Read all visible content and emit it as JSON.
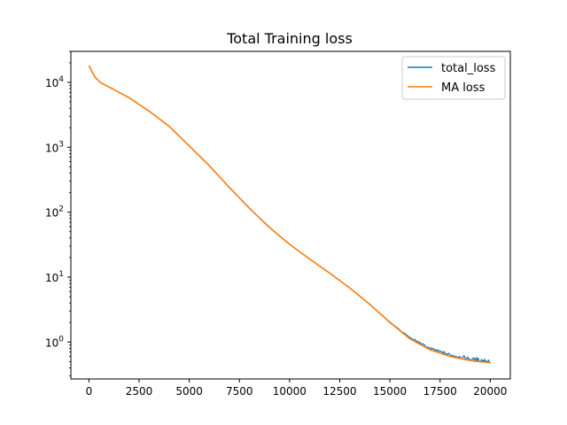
{
  "chart_data": {
    "type": "line",
    "title": "Total Training loss",
    "xlabel": "",
    "ylabel": "",
    "xlim": [
      -900,
      21000
    ],
    "ylim": [
      0.27,
      30000
    ],
    "yscale": "log",
    "x_ticks": [
      0,
      2500,
      5000,
      7500,
      10000,
      12500,
      15000,
      17500,
      20000
    ],
    "x_tick_labels": [
      "0",
      "2500",
      "5000",
      "7500",
      "10000",
      "12500",
      "15000",
      "17500",
      "20000"
    ],
    "y_ticks": [
      1,
      10,
      100,
      1000,
      10000
    ],
    "y_tick_labels": [
      {
        "base": "10",
        "exp": "0"
      },
      {
        "base": "10",
        "exp": "1"
      },
      {
        "base": "10",
        "exp": "2"
      },
      {
        "base": "10",
        "exp": "3"
      },
      {
        "base": "10",
        "exp": "4"
      }
    ],
    "grid": false,
    "legend": "top-right",
    "series": [
      {
        "name": "total_loss",
        "color": "#1f77b4",
        "noise": 0.08,
        "x": [
          0,
          300,
          600,
          1000,
          2000,
          3000,
          4000,
          5000,
          6000,
          7000,
          8000,
          9000,
          10000,
          11000,
          12000,
          13000,
          14000,
          15000,
          16000,
          17000,
          18000,
          19000,
          20000
        ],
        "y": [
          18000,
          12000,
          9800,
          8500,
          5800,
          3600,
          2100,
          1050,
          520,
          240,
          115,
          58,
          32,
          19,
          11.5,
          6.8,
          3.8,
          2.0,
          1.15,
          0.78,
          0.62,
          0.53,
          0.49
        ]
      },
      {
        "name": "MA loss",
        "color": "#ff7f0e",
        "noise": 0,
        "x": [
          0,
          300,
          600,
          1000,
          2000,
          3000,
          4000,
          5000,
          6000,
          7000,
          8000,
          9000,
          10000,
          11000,
          12000,
          13000,
          14000,
          15000,
          16000,
          17000,
          18000,
          19000,
          20000
        ],
        "y": [
          18000,
          12000,
          9800,
          8500,
          5800,
          3600,
          2100,
          1050,
          520,
          240,
          115,
          58,
          32,
          19,
          11.5,
          6.8,
          3.8,
          2.0,
          1.12,
          0.76,
          0.6,
          0.52,
          0.48
        ]
      }
    ]
  }
}
